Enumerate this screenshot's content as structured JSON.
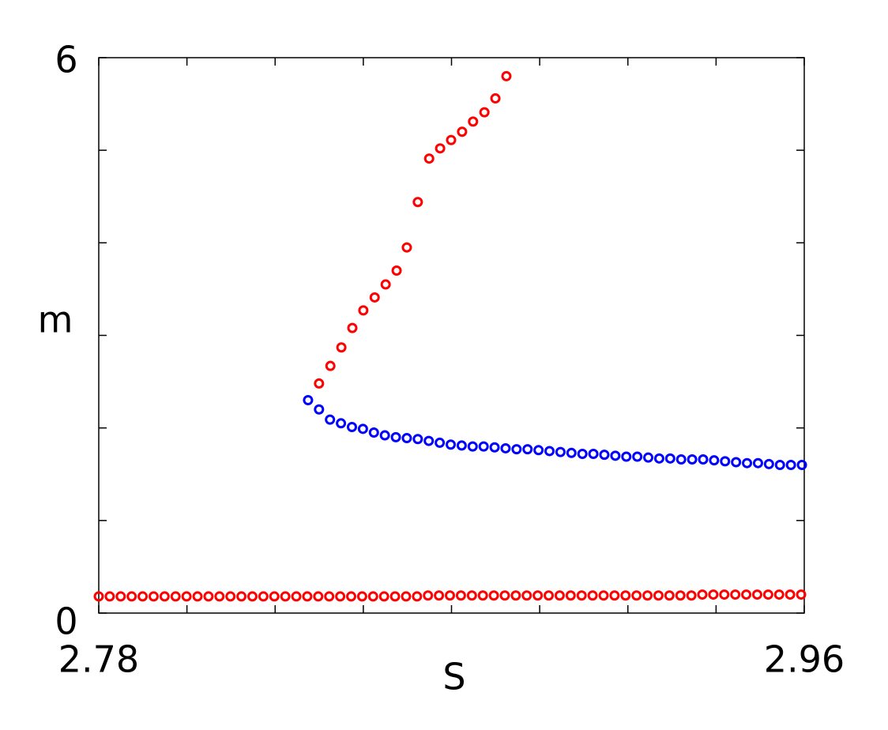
{
  "chart_data": {
    "type": "scatter",
    "xlabel": "S",
    "ylabel": "m",
    "xlim": [
      2.78,
      2.96
    ],
    "ylim": [
      0,
      6
    ],
    "xticks": [
      2.78,
      2.96
    ],
    "yticks": [
      0,
      6
    ],
    "xminor_ticks": [
      2.8025,
      2.825,
      2.8475,
      2.87,
      2.8925,
      2.915,
      2.9375
    ],
    "yminor_ticks": [
      1,
      2,
      3,
      4,
      5
    ],
    "series": [
      {
        "color": "#ff0000",
        "x": [
          2.78,
          2.7828,
          2.7856,
          2.7884,
          2.7912,
          2.794,
          2.7968,
          2.7996,
          2.8024,
          2.8052,
          2.808,
          2.8108,
          2.8136,
          2.8164,
          2.8192,
          2.822,
          2.8248,
          2.8276,
          2.8304,
          2.8332,
          2.836,
          2.8388,
          2.8416,
          2.8444,
          2.8472,
          2.85,
          2.8528,
          2.8556,
          2.8584,
          2.8612,
          2.864,
          2.8668,
          2.8696,
          2.8724,
          2.8752,
          2.878,
          2.8808,
          2.8836,
          2.8864,
          2.8892,
          2.892,
          2.8948,
          2.8976,
          2.9004,
          2.9032,
          2.906,
          2.9088,
          2.9116,
          2.9144,
          2.9172,
          2.92,
          2.9228,
          2.9256,
          2.9284,
          2.9312,
          2.934,
          2.9368,
          2.9396,
          2.9424,
          2.9452,
          2.948,
          2.9508,
          2.9536,
          2.9564,
          2.9592
        ],
        "values": [
          0.18,
          0.18,
          0.18,
          0.18,
          0.18,
          0.18,
          0.18,
          0.18,
          0.18,
          0.18,
          0.18,
          0.18,
          0.18,
          0.18,
          0.18,
          0.18,
          0.18,
          0.18,
          0.18,
          0.18,
          0.18,
          0.18,
          0.18,
          0.18,
          0.18,
          0.18,
          0.18,
          0.18,
          0.18,
          0.18,
          0.19,
          0.19,
          0.19,
          0.19,
          0.19,
          0.19,
          0.19,
          0.19,
          0.19,
          0.19,
          0.19,
          0.19,
          0.19,
          0.19,
          0.19,
          0.19,
          0.19,
          0.19,
          0.19,
          0.19,
          0.19,
          0.19,
          0.19,
          0.19,
          0.19,
          0.2,
          0.2,
          0.2,
          0.2,
          0.2,
          0.2,
          0.2,
          0.2,
          0.2,
          0.2
        ]
      },
      {
        "color": "#ff0000",
        "x": [
          2.8362,
          2.8391,
          2.8419,
          2.8447,
          2.8475,
          2.8504,
          2.8532,
          2.856,
          2.8586,
          2.8614,
          2.8643,
          2.8671,
          2.8699,
          2.8727,
          2.8755,
          2.8784,
          2.8812,
          2.884
        ],
        "values": [
          2.48,
          2.67,
          2.87,
          3.08,
          3.27,
          3.41,
          3.55,
          3.7,
          3.95,
          4.44,
          4.91,
          5.02,
          5.11,
          5.2,
          5.31,
          5.41,
          5.56,
          5.8
        ]
      },
      {
        "color": "#0000ff",
        "x": [
          2.8334,
          2.8362,
          2.839,
          2.8418,
          2.8446,
          2.8474,
          2.8502,
          2.853,
          2.8558,
          2.8586,
          2.8614,
          2.8642,
          2.867,
          2.8698,
          2.8726,
          2.8754,
          2.8782,
          2.881,
          2.8838,
          2.8866,
          2.8894,
          2.8922,
          2.895,
          2.8978,
          2.9006,
          2.9034,
          2.9062,
          2.909,
          2.9118,
          2.9146,
          2.9174,
          2.9202,
          2.923,
          2.9258,
          2.9286,
          2.9314,
          2.9342,
          2.937,
          2.9398,
          2.9426,
          2.9454,
          2.9482,
          2.951,
          2.9538,
          2.9566,
          2.9594
        ],
        "values": [
          2.3,
          2.2,
          2.09,
          2.05,
          2.01,
          1.99,
          1.95,
          1.92,
          1.9,
          1.89,
          1.88,
          1.86,
          1.84,
          1.82,
          1.81,
          1.8,
          1.8,
          1.79,
          1.78,
          1.77,
          1.77,
          1.76,
          1.75,
          1.74,
          1.73,
          1.72,
          1.72,
          1.71,
          1.7,
          1.69,
          1.69,
          1.68,
          1.67,
          1.67,
          1.66,
          1.66,
          1.66,
          1.65,
          1.64,
          1.63,
          1.62,
          1.62,
          1.61,
          1.6,
          1.6,
          1.6
        ]
      }
    ]
  }
}
